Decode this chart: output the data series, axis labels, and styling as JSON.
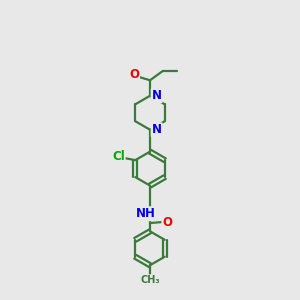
{
  "bg_color": "#e8e8e8",
  "bond_color": "#3a7a3a",
  "bond_width": 1.6,
  "atom_colors": {
    "N": "#0000ee",
    "O": "#ee0000",
    "Cl": "#00aa00",
    "C": "#000000",
    "H": "#555555"
  },
  "font_size": 8.5
}
